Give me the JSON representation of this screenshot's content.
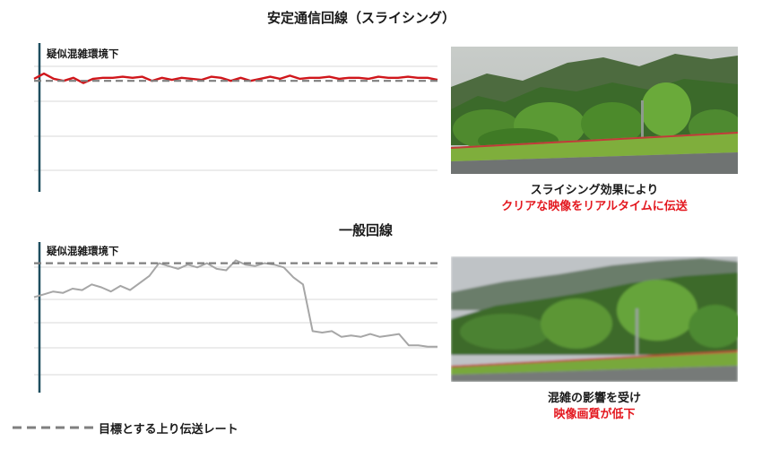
{
  "top_section": {
    "title": "安定通信回線（スライシング）",
    "chart_label": "疑似混雑環境下",
    "caption_line1": "スライシング効果により",
    "caption_line2": "クリアな映像をリアルタイムに伝送"
  },
  "bottom_section": {
    "title": "一般回線",
    "chart_label": "疑似混雑環境下",
    "caption_line1": "混雑の影響を受け",
    "caption_line2": "映像画質が低下"
  },
  "legend": {
    "label": "目標とする上り伝送レート"
  },
  "colors": {
    "slicing_line": "#d0161b",
    "normal_line": "#a6a6a6",
    "target_line": "#7f7f7f",
    "axis": "#1f4e5f",
    "grid": "#d9d9d9",
    "caption_highlight": "#e3171e"
  },
  "chart_data": [
    {
      "type": "line",
      "title": "疑似混雑環境下",
      "xlabel": "",
      "ylabel": "",
      "ylim": [
        0,
        100
      ],
      "grid": true,
      "series": [
        {
          "values": [
            88,
            93,
            88,
            86,
            89,
            84,
            88,
            89,
            89,
            90,
            89,
            90,
            86,
            89,
            87,
            89,
            88,
            87,
            90,
            89,
            86,
            89,
            86,
            88,
            90,
            88,
            91,
            88,
            89,
            89,
            90,
            88,
            89,
            89,
            88,
            90,
            89,
            89,
            90,
            89,
            89,
            87
          ]
        },
        {
          "values": [
            86,
            86,
            86,
            86,
            86,
            86,
            86,
            86,
            86,
            86,
            86,
            86,
            86,
            86,
            86,
            86,
            86,
            86,
            86,
            86,
            86,
            86,
            86,
            86,
            86,
            86,
            86,
            86,
            86,
            86,
            86,
            86,
            86,
            86,
            86,
            86,
            86,
            86,
            86,
            86,
            86,
            86
          ]
        }
      ]
    },
    {
      "type": "line",
      "title": "疑似混雑環境下",
      "xlabel": "",
      "ylabel": "",
      "ylim": [
        0,
        100
      ],
      "grid": true,
      "series": [
        {
          "values": [
            56,
            58,
            60,
            59,
            62,
            61,
            65,
            63,
            60,
            64,
            61,
            66,
            71,
            80,
            78,
            76,
            79,
            77,
            80,
            76,
            75,
            82,
            79,
            78,
            80,
            79,
            77,
            70,
            65,
            32,
            31,
            32,
            28,
            29,
            28,
            30,
            28,
            29,
            30,
            22,
            22,
            21,
            21
          ]
        },
        {
          "values": [
            80,
            80,
            80,
            80,
            80,
            80,
            80,
            80,
            80,
            80,
            80,
            80,
            80,
            80,
            80,
            80,
            80,
            80,
            80,
            80,
            80,
            80,
            80,
            80,
            80,
            80,
            80,
            80,
            80,
            80,
            80,
            80,
            80,
            80,
            80,
            80,
            80,
            80,
            80,
            80,
            80,
            80,
            80
          ]
        }
      ]
    }
  ]
}
